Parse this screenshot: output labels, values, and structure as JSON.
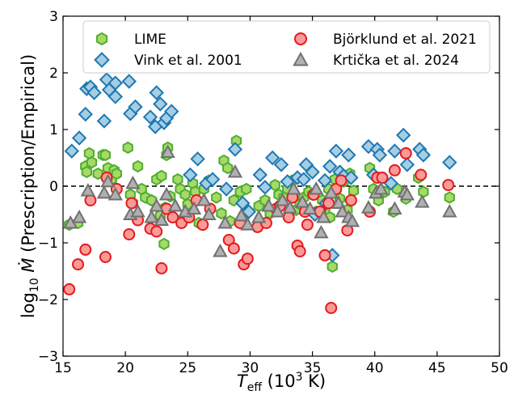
{
  "chart_data": {
    "type": "scatter",
    "xlabel": "T_eff (10^3 K)",
    "ylabel": "log10 Ṁ (Prescription/Empirical)",
    "xlim": [
      15,
      50
    ],
    "ylim": [
      -3,
      3
    ],
    "xticks": [
      15,
      20,
      25,
      30,
      35,
      40,
      45,
      50
    ],
    "yticks": [
      -3,
      -2,
      -1,
      0,
      1,
      2,
      3
    ],
    "reference_line": {
      "y": 0,
      "style": "dashed",
      "color": "#000000"
    },
    "legend": {
      "position": "top",
      "columns": 2
    },
    "series": [
      {
        "name": "LIME",
        "marker": "hexagon",
        "fill": "#a6d96a",
        "edge": "#4daf2c",
        "points": [
          [
            15.5,
            -0.68
          ],
          [
            16.2,
            -0.65
          ],
          [
            16.8,
            0.35
          ],
          [
            16.9,
            0.25
          ],
          [
            17.1,
            0.58
          ],
          [
            17.3,
            0.42
          ],
          [
            17.8,
            0.22
          ],
          [
            18.2,
            0.55
          ],
          [
            18.4,
            0.55
          ],
          [
            18.6,
            0.32
          ],
          [
            18.9,
            0.12
          ],
          [
            19.1,
            0.28
          ],
          [
            19.3,
            0.22
          ],
          [
            20.2,
            0.68
          ],
          [
            20.4,
            -0.15
          ],
          [
            20.6,
            -0.3
          ],
          [
            21.0,
            0.35
          ],
          [
            21.3,
            -0.05
          ],
          [
            21.6,
            -0.2
          ],
          [
            22.1,
            -0.25
          ],
          [
            22.5,
            0.12
          ],
          [
            22.8,
            -0.52
          ],
          [
            22.9,
            0.18
          ],
          [
            23.1,
            -1.02
          ],
          [
            23.2,
            -0.38
          ],
          [
            23.3,
            0.55
          ],
          [
            23.4,
            0.68
          ],
          [
            23.6,
            -0.18
          ],
          [
            24.2,
            0.12
          ],
          [
            24.4,
            -0.05
          ],
          [
            24.8,
            -0.15
          ],
          [
            25.0,
            -0.32
          ],
          [
            25.4,
            0.05
          ],
          [
            25.6,
            -0.1
          ],
          [
            25.9,
            -0.65
          ],
          [
            26.3,
            -0.05
          ],
          [
            26.7,
            0.1
          ],
          [
            27.3,
            -0.2
          ],
          [
            27.7,
            -0.48
          ],
          [
            27.9,
            0.45
          ],
          [
            28.2,
            0.32
          ],
          [
            28.4,
            -0.62
          ],
          [
            28.7,
            -0.25
          ],
          [
            28.9,
            0.8
          ],
          [
            29.2,
            -0.1
          ],
          [
            29.5,
            -0.62
          ],
          [
            29.7,
            -0.05
          ],
          [
            30.7,
            -0.35
          ],
          [
            31.2,
            -0.25
          ],
          [
            31.6,
            -0.48
          ],
          [
            32.0,
            0.02
          ],
          [
            32.3,
            -0.15
          ],
          [
            32.7,
            -0.2
          ],
          [
            33.0,
            -0.05
          ],
          [
            33.4,
            0.1
          ],
          [
            33.7,
            -0.42
          ],
          [
            34.0,
            -0.32
          ],
          [
            34.3,
            -0.2
          ],
          [
            34.7,
            -0.1
          ],
          [
            35.0,
            -0.15
          ],
          [
            35.3,
            -0.45
          ],
          [
            35.8,
            -0.25
          ],
          [
            36.0,
            -0.45
          ],
          [
            36.3,
            -0.05
          ],
          [
            36.4,
            -0.55
          ],
          [
            36.6,
            -1.42
          ],
          [
            36.8,
            0.12
          ],
          [
            37.2,
            -0.22
          ],
          [
            37.5,
            0.08
          ],
          [
            37.8,
            -0.42
          ],
          [
            38.0,
            0.22
          ],
          [
            38.3,
            -0.08
          ],
          [
            39.6,
            0.32
          ],
          [
            39.9,
            -0.05
          ],
          [
            40.3,
            -0.25
          ],
          [
            40.8,
            -0.1
          ],
          [
            41.5,
            -0.45
          ],
          [
            41.8,
            -0.05
          ],
          [
            42.5,
            -0.22
          ],
          [
            43.5,
            0.15
          ],
          [
            43.9,
            -0.1
          ],
          [
            46.0,
            -0.2
          ]
        ]
      },
      {
        "name": "Vink et al. 2001",
        "marker": "diamond",
        "fill": "#a6cee3",
        "edge": "#1f78b4",
        "points": [
          [
            15.7,
            0.62
          ],
          [
            16.3,
            0.85
          ],
          [
            16.8,
            1.27
          ],
          [
            16.9,
            1.72
          ],
          [
            17.2,
            1.75
          ],
          [
            17.5,
            1.65
          ],
          [
            18.3,
            1.15
          ],
          [
            18.5,
            1.88
          ],
          [
            18.7,
            1.7
          ],
          [
            19.2,
            1.82
          ],
          [
            19.2,
            1.58
          ],
          [
            20.3,
            1.85
          ],
          [
            20.4,
            1.28
          ],
          [
            20.8,
            1.4
          ],
          [
            22.0,
            1.22
          ],
          [
            22.4,
            1.05
          ],
          [
            22.5,
            1.65
          ],
          [
            22.8,
            1.45
          ],
          [
            23.1,
            1.12
          ],
          [
            23.3,
            1.2
          ],
          [
            23.7,
            1.32
          ],
          [
            25.2,
            0.2
          ],
          [
            25.8,
            0.48
          ],
          [
            26.5,
            0.05
          ],
          [
            27.0,
            0.12
          ],
          [
            28.1,
            -0.05
          ],
          [
            28.8,
            0.65
          ],
          [
            29.4,
            -0.3
          ],
          [
            29.9,
            -0.45
          ],
          [
            30.8,
            0.2
          ],
          [
            31.2,
            -0.02
          ],
          [
            31.8,
            0.5
          ],
          [
            32.5,
            0.38
          ],
          [
            33.0,
            0.08
          ],
          [
            33.8,
            0.15
          ],
          [
            34.3,
            0.12
          ],
          [
            34.5,
            0.38
          ],
          [
            35.0,
            0.25
          ],
          [
            35.2,
            -0.5
          ],
          [
            36.0,
            0.1
          ],
          [
            36.1,
            -0.3
          ],
          [
            36.4,
            0.35
          ],
          [
            36.6,
            -1.22
          ],
          [
            36.9,
            0.62
          ],
          [
            37.2,
            0.25
          ],
          [
            37.5,
            0.18
          ],
          [
            37.9,
            0.55
          ],
          [
            38.1,
            0.15
          ],
          [
            39.5,
            0.7
          ],
          [
            39.9,
            0.2
          ],
          [
            40.2,
            0.65
          ],
          [
            40.4,
            0.55
          ],
          [
            41.3,
            0.05
          ],
          [
            41.6,
            0.62
          ],
          [
            42.3,
            0.9
          ],
          [
            42.6,
            0.38
          ],
          [
            43.6,
            0.65
          ],
          [
            43.9,
            0.55
          ],
          [
            46.0,
            0.42
          ]
        ]
      },
      {
        "name": "Björklund et al. 2021",
        "marker": "circle",
        "fill": "#fb9a99",
        "edge": "#e31a1c",
        "points": [
          [
            15.5,
            -1.82
          ],
          [
            16.2,
            -1.38
          ],
          [
            16.8,
            -1.12
          ],
          [
            17.2,
            -0.25
          ],
          [
            18.4,
            -1.25
          ],
          [
            18.5,
            0.15
          ],
          [
            19.3,
            -0.05
          ],
          [
            20.3,
            -0.85
          ],
          [
            20.5,
            -0.3
          ],
          [
            21.0,
            -0.6
          ],
          [
            22.0,
            -0.75
          ],
          [
            22.5,
            -0.8
          ],
          [
            22.9,
            -1.45
          ],
          [
            23.3,
            -0.4
          ],
          [
            23.8,
            -0.55
          ],
          [
            24.5,
            -0.65
          ],
          [
            25.1,
            -0.55
          ],
          [
            25.7,
            -0.25
          ],
          [
            26.2,
            -0.68
          ],
          [
            26.8,
            -0.4
          ],
          [
            28.3,
            -0.95
          ],
          [
            28.7,
            -1.1
          ],
          [
            29.2,
            -0.65
          ],
          [
            29.5,
            -1.38
          ],
          [
            29.8,
            -1.28
          ],
          [
            30.6,
            -0.72
          ],
          [
            31.3,
            -0.65
          ],
          [
            32.1,
            -0.4
          ],
          [
            32.4,
            -0.35
          ],
          [
            33.1,
            -0.55
          ],
          [
            33.4,
            -0.2
          ],
          [
            33.8,
            -1.05
          ],
          [
            34.0,
            -1.15
          ],
          [
            34.4,
            -0.45
          ],
          [
            34.6,
            -0.68
          ],
          [
            35.1,
            -0.15
          ],
          [
            35.6,
            -0.45
          ],
          [
            36.0,
            -1.22
          ],
          [
            36.3,
            -0.3
          ],
          [
            36.5,
            -2.15
          ],
          [
            36.9,
            -0.05
          ],
          [
            37.3,
            0.1
          ],
          [
            37.8,
            -0.78
          ],
          [
            38.1,
            -0.25
          ],
          [
            39.6,
            -0.45
          ],
          [
            40.2,
            0.15
          ],
          [
            40.6,
            0.15
          ],
          [
            41.6,
            0.28
          ],
          [
            42.5,
            0.58
          ],
          [
            43.7,
            0.2
          ],
          [
            45.9,
            0.02
          ]
        ]
      },
      {
        "name": "Krtička et al. 2024",
        "marker": "triangle",
        "fill": "#b0b0b0",
        "edge": "#707070",
        "points": [
          [
            15.6,
            -0.65
          ],
          [
            16.3,
            -0.55
          ],
          [
            17.0,
            -0.08
          ],
          [
            18.3,
            -0.12
          ],
          [
            18.6,
            0.08
          ],
          [
            19.2,
            -0.15
          ],
          [
            20.4,
            -0.5
          ],
          [
            20.6,
            0.05
          ],
          [
            21.0,
            -0.45
          ],
          [
            22.1,
            -0.55
          ],
          [
            22.5,
            -0.35
          ],
          [
            22.9,
            -0.6
          ],
          [
            23.3,
            -0.15
          ],
          [
            23.4,
            0.6
          ],
          [
            24.0,
            -0.35
          ],
          [
            24.8,
            -0.45
          ],
          [
            25.5,
            -0.4
          ],
          [
            26.3,
            -0.25
          ],
          [
            26.7,
            -0.5
          ],
          [
            27.6,
            -1.15
          ],
          [
            28.0,
            -0.65
          ],
          [
            28.8,
            0.25
          ],
          [
            29.3,
            -0.52
          ],
          [
            29.8,
            -0.68
          ],
          [
            30.7,
            -0.55
          ],
          [
            31.5,
            -0.35
          ],
          [
            32.2,
            -0.45
          ],
          [
            32.6,
            -0.25
          ],
          [
            33.2,
            -0.38
          ],
          [
            33.5,
            -0.05
          ],
          [
            34.2,
            -0.28
          ],
          [
            34.8,
            -0.4
          ],
          [
            35.3,
            -0.05
          ],
          [
            35.7,
            -0.82
          ],
          [
            35.9,
            -0.55
          ],
          [
            36.5,
            -0.12
          ],
          [
            37.1,
            -0.3
          ],
          [
            37.4,
            -0.45
          ],
          [
            37.9,
            -0.55
          ],
          [
            38.2,
            -0.62
          ],
          [
            39.5,
            -0.38
          ],
          [
            40.1,
            -0.12
          ],
          [
            40.5,
            -0.05
          ],
          [
            41.6,
            -0.4
          ],
          [
            42.4,
            -0.1
          ],
          [
            42.6,
            -0.15
          ],
          [
            43.8,
            -0.28
          ],
          [
            46.0,
            -0.45
          ]
        ]
      }
    ]
  }
}
